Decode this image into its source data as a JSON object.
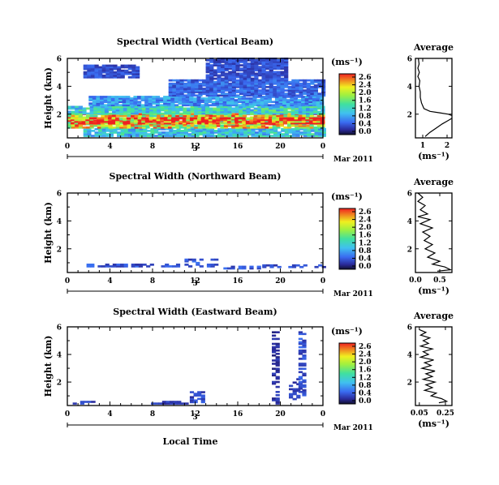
{
  "figure": {
    "x_tick_labels": [
      "0",
      "4",
      "8",
      "12",
      "16",
      "20",
      "0"
    ],
    "date_day": "3",
    "date_label": "Mar 2011",
    "xlabel": "Local Time",
    "ylabel": "Height (km)",
    "cbar_unit": "(ms⁻¹)",
    "profile_title": "Average",
    "profile_xlabel": "(ms⁻¹)"
  },
  "chart_data": [
    {
      "type": "heatmap",
      "title": "Spectral Width (Vertical Beam)",
      "xlabel": "Local Time",
      "ylabel": "Height (km)",
      "xlim": [
        0,
        24
      ],
      "ylim": [
        0.3,
        6
      ],
      "y_ticks": [
        2,
        4,
        6
      ],
      "y_tick_labels": [
        "2",
        "4",
        "6"
      ],
      "colorbar": {
        "unit": "(ms⁻¹)",
        "range": [
          0,
          2.6
        ],
        "tick_labels": [
          "2.6",
          "2.4",
          "2.0",
          "1.6",
          "1.2",
          "0.8",
          "0.4",
          "0.0"
        ]
      },
      "regions": [
        {
          "t": [
            1.5,
            24
          ],
          "h": [
            0.4,
            1.0
          ],
          "v": 1.0
        },
        {
          "t": [
            0,
            24
          ],
          "h": [
            1.0,
            2.0
          ],
          "v": 1.9
        },
        {
          "t": [
            0.3,
            24
          ],
          "h": [
            1.3,
            1.7
          ],
          "v": 2.5
        },
        {
          "t": [
            0,
            24
          ],
          "h": [
            2.0,
            2.6
          ],
          "v": 1.1
        },
        {
          "t": [
            2,
            24
          ],
          "h": [
            2.6,
            3.3
          ],
          "v": 0.7
        },
        {
          "t": [
            9.5,
            24
          ],
          "h": [
            3.3,
            4.5
          ],
          "v": 0.5
        },
        {
          "t": [
            1.5,
            6.5
          ],
          "h": [
            4.6,
            5.5
          ],
          "v": 0.4
        },
        {
          "t": [
            13,
            20.5
          ],
          "h": [
            4.5,
            6.0
          ],
          "v": 0.4
        }
      ],
      "profile": {
        "title": "Average",
        "xlabel": "(ms⁻¹)",
        "xlim": [
          0.7,
          2.2
        ],
        "x_ticks": [
          1,
          2
        ],
        "x_tick_labels": [
          "1",
          "2"
        ],
        "y_ticks": [
          2,
          4,
          6
        ],
        "y_tick_labels": [
          "2",
          "4",
          "6"
        ],
        "lines": [
          [
            [
              0.82,
              6.0
            ],
            [
              0.85,
              5.6
            ],
            [
              0.8,
              5.3
            ],
            [
              0.86,
              5.0
            ],
            [
              0.8,
              4.7
            ],
            [
              0.88,
              4.4
            ],
            [
              0.85,
              4.0
            ],
            [
              0.9,
              3.6
            ],
            [
              0.9,
              3.2
            ],
            [
              0.95,
              2.8
            ],
            [
              1.05,
              2.4
            ],
            [
              1.3,
              2.2
            ],
            [
              1.7,
              2.1
            ],
            [
              2.05,
              2.0
            ],
            [
              2.2,
              1.9
            ]
          ],
          [
            [
              2.2,
              1.7
            ],
            [
              2.0,
              1.5
            ],
            [
              1.8,
              1.3
            ],
            [
              1.55,
              1.0
            ],
            [
              1.3,
              0.7
            ],
            [
              1.1,
              0.4
            ]
          ]
        ]
      }
    },
    {
      "type": "heatmap",
      "title": "Spectral Width (Northward Beam)",
      "xlabel": "Local Time",
      "ylabel": "Height (km)",
      "xlim": [
        0,
        24
      ],
      "ylim": [
        0.3,
        6
      ],
      "y_ticks": [
        2,
        4,
        6
      ],
      "y_tick_labels": [
        "2",
        "4",
        "6"
      ],
      "colorbar": {
        "unit": "(ms⁻¹)",
        "range": [
          0,
          2.6
        ],
        "tick_labels": [
          "2.6",
          "2.4",
          "2.0",
          "1.6",
          "1.2",
          "0.8",
          "0.4",
          "0.0"
        ]
      },
      "regions": [
        {
          "t": [
            1.8,
            10.5
          ],
          "h": [
            0.7,
            0.85
          ],
          "v": 0.4
        },
        {
          "t": [
            11.0,
            14.0
          ],
          "h": [
            0.7,
            1.3
          ],
          "v": 0.4
        },
        {
          "t": [
            14.3,
            18.0
          ],
          "h": [
            0.55,
            0.75
          ],
          "v": 0.4
        },
        {
          "t": [
            18.3,
            24
          ],
          "h": [
            0.65,
            0.85
          ],
          "v": 0.4
        }
      ],
      "profile": {
        "title": "Average",
        "xlabel": "(ms⁻¹)",
        "xlim": [
          0,
          0.75
        ],
        "x_ticks": [
          0,
          0.5
        ],
        "x_tick_labels": [
          "0.0",
          "0.5"
        ],
        "y_ticks": [
          2,
          4,
          6
        ],
        "y_tick_labels": [
          "2",
          "4",
          "6"
        ],
        "lines": [
          [
            [
              0.05,
              6.0
            ],
            [
              0.15,
              5.7
            ],
            [
              0.05,
              5.4
            ],
            [
              0.2,
              5.1
            ],
            [
              0.1,
              4.8
            ],
            [
              0.25,
              4.5
            ],
            [
              0.05,
              4.3
            ],
            [
              0.3,
              4.1
            ],
            [
              0.1,
              3.8
            ],
            [
              0.35,
              3.5
            ],
            [
              0.15,
              3.2
            ],
            [
              0.3,
              2.9
            ],
            [
              0.18,
              2.6
            ],
            [
              0.35,
              2.3
            ],
            [
              0.2,
              2.0
            ],
            [
              0.4,
              1.7
            ],
            [
              0.25,
              1.4
            ],
            [
              0.5,
              1.1
            ],
            [
              0.35,
              0.9
            ],
            [
              0.6,
              0.7
            ],
            [
              0.72,
              0.5
            ],
            [
              0.45,
              0.4
            ]
          ]
        ]
      }
    },
    {
      "type": "heatmap",
      "title": "Spectral Width (Eastward Beam)",
      "xlabel": "Local Time",
      "ylabel": "Height (km)",
      "xlim": [
        0,
        24
      ],
      "ylim": [
        0.3,
        6
      ],
      "y_ticks": [
        2,
        4,
        6
      ],
      "y_tick_labels": [
        "2",
        "4",
        "6"
      ],
      "colorbar": {
        "unit": "(ms⁻¹)",
        "range": [
          0,
          2.6
        ],
        "tick_labels": [
          "2.6",
          "2.4",
          "2.0",
          "1.6",
          "1.2",
          "0.8",
          "0.4",
          "0.0"
        ]
      },
      "regions": [
        {
          "t": [
            0.5,
            2.5
          ],
          "h": [
            0.4,
            0.55
          ],
          "v": 0.3
        },
        {
          "t": [
            7.5,
            11.5
          ],
          "h": [
            0.4,
            0.55
          ],
          "v": 0.3
        },
        {
          "t": [
            11.5,
            12.8
          ],
          "h": [
            0.5,
            1.3
          ],
          "v": 0.35
        },
        {
          "t": [
            19.2,
            19.6
          ],
          "h": [
            0.4,
            5.6
          ],
          "v": 0.25
        },
        {
          "t": [
            20.8,
            21.6
          ],
          "h": [
            0.6,
            2.2
          ],
          "v": 0.3
        },
        {
          "t": [
            21.7,
            22.3
          ],
          "h": [
            1.0,
            5.6
          ],
          "v": 0.4
        }
      ],
      "profile": {
        "title": "Average",
        "xlabel": "(ms⁻¹)",
        "xlim": [
          0.02,
          0.3
        ],
        "x_ticks": [
          0.05,
          0.25
        ],
        "x_tick_labels": [
          "0.05",
          "0.25"
        ],
        "y_ticks": [
          2,
          4,
          6
        ],
        "y_tick_labels": [
          "2",
          "4",
          "6"
        ],
        "lines": [
          [
            [
              0.05,
              5.8
            ],
            [
              0.1,
              5.6
            ],
            [
              0.06,
              5.4
            ],
            [
              0.13,
              5.2
            ],
            [
              0.08,
              5.0
            ],
            [
              0.12,
              4.8
            ],
            [
              0.06,
              4.6
            ],
            [
              0.15,
              4.4
            ],
            [
              0.08,
              4.2
            ],
            [
              0.12,
              4.0
            ],
            [
              0.06,
              3.8
            ],
            [
              0.16,
              3.6
            ],
            [
              0.09,
              3.4
            ],
            [
              0.14,
              3.2
            ],
            [
              0.07,
              3.0
            ],
            [
              0.17,
              2.8
            ],
            [
              0.1,
              2.6
            ],
            [
              0.15,
              2.4
            ],
            [
              0.08,
              2.2
            ],
            [
              0.17,
              2.0
            ],
            [
              0.1,
              1.8
            ],
            [
              0.15,
              1.6
            ],
            [
              0.09,
              1.4
            ],
            [
              0.18,
              1.2
            ],
            [
              0.14,
              1.0
            ],
            [
              0.22,
              0.8
            ],
            [
              0.26,
              0.6
            ],
            [
              0.2,
              0.5
            ]
          ]
        ]
      }
    }
  ]
}
